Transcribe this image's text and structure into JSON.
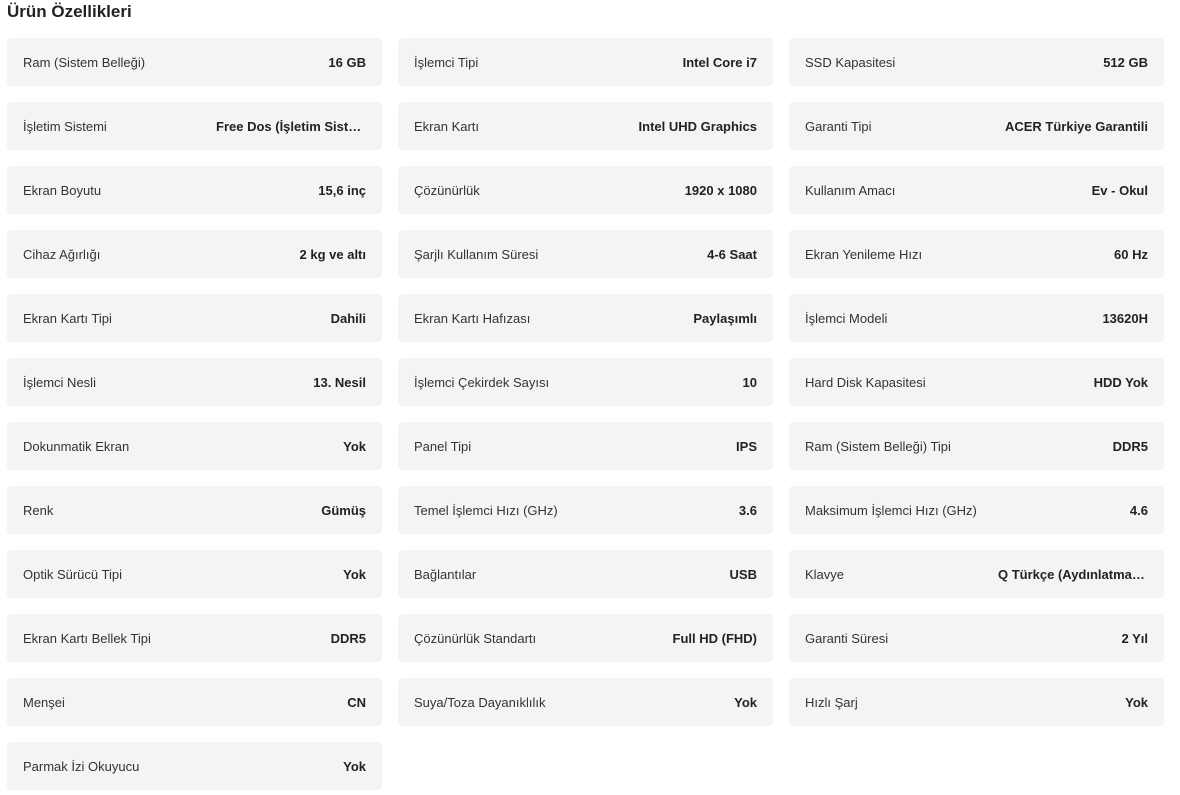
{
  "title": "Ürün Özellikleri",
  "specs": [
    {
      "label": "Ram (Sistem Belleği)",
      "value": "16 GB"
    },
    {
      "label": "İşlemci Tipi",
      "value": "Intel Core i7"
    },
    {
      "label": "SSD Kapasitesi",
      "value": "512 GB"
    },
    {
      "label": "İşletim Sistemi",
      "value": "Free Dos (İşletim Sistemi Yok)"
    },
    {
      "label": "Ekran Kartı",
      "value": "Intel UHD Graphics"
    },
    {
      "label": "Garanti Tipi",
      "value": "ACER Türkiye Garantili"
    },
    {
      "label": "Ekran Boyutu",
      "value": "15,6 inç"
    },
    {
      "label": "Çözünürlük",
      "value": "1920 x 1080"
    },
    {
      "label": "Kullanım Amacı",
      "value": "Ev - Okul"
    },
    {
      "label": "Cihaz Ağırlığı",
      "value": "2 kg ve altı"
    },
    {
      "label": "Şarjlı Kullanım Süresi",
      "value": "4-6 Saat"
    },
    {
      "label": "Ekran Yenileme Hızı",
      "value": "60 Hz"
    },
    {
      "label": "Ekran Kartı Tipi",
      "value": "Dahili"
    },
    {
      "label": "Ekran Kartı Hafızası",
      "value": "Paylaşımlı"
    },
    {
      "label": "İşlemci Modeli",
      "value": "13620H"
    },
    {
      "label": "İşlemci Nesli",
      "value": "13. Nesil"
    },
    {
      "label": "İşlemci Çekirdek Sayısı",
      "value": "10"
    },
    {
      "label": "Hard Disk Kapasitesi",
      "value": "HDD Yok"
    },
    {
      "label": "Dokunmatik Ekran",
      "value": "Yok"
    },
    {
      "label": "Panel Tipi",
      "value": "IPS"
    },
    {
      "label": "Ram (Sistem Belleği) Tipi",
      "value": "DDR5"
    },
    {
      "label": "Renk",
      "value": "Gümüş"
    },
    {
      "label": "Temel İşlemci Hızı (GHz)",
      "value": "3.6"
    },
    {
      "label": "Maksimum İşlemci Hızı (GHz)",
      "value": "4.6"
    },
    {
      "label": "Optik Sürücü Tipi",
      "value": "Yok"
    },
    {
      "label": "Bağlantılar",
      "value": "USB"
    },
    {
      "label": "Klavye",
      "value": "Q Türkçe (Aydınlatmasız)"
    },
    {
      "label": "Ekran Kartı Bellek Tipi",
      "value": "DDR5"
    },
    {
      "label": "Çözünürlük Standartı",
      "value": "Full HD (FHD)"
    },
    {
      "label": "Garanti Süresi",
      "value": "2 Yıl"
    },
    {
      "label": "Menşei",
      "value": "CN"
    },
    {
      "label": "Suya/Toza Dayanıklılık",
      "value": "Yok"
    },
    {
      "label": "Hızlı Şarj",
      "value": "Yok"
    },
    {
      "label": "Parmak İzi Okuyucu",
      "value": "Yok"
    }
  ]
}
